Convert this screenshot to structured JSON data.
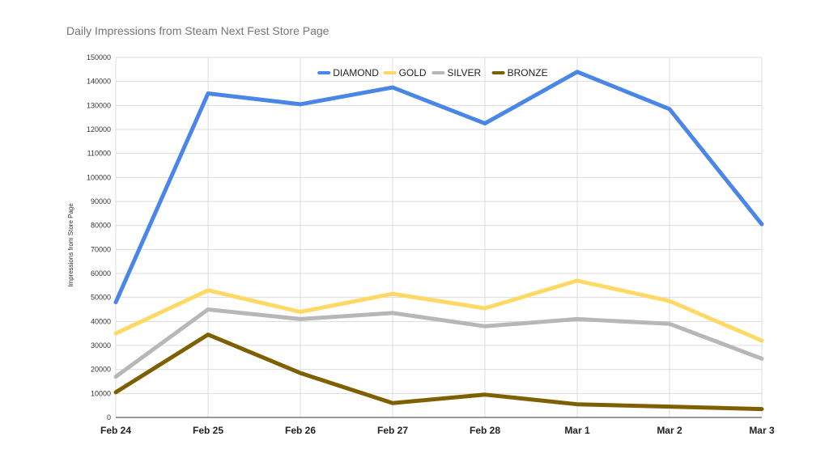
{
  "chart_data": {
    "type": "line",
    "title": "Daily Impressions from Steam Next Fest Store Page",
    "xlabel": "",
    "ylabel": "Impressions from Store Page",
    "categories": [
      "Feb 24",
      "Feb 25",
      "Feb 26",
      "Feb 27",
      "Feb 28",
      "Mar 1",
      "Mar 2",
      "Mar 3"
    ],
    "ylim": [
      0,
      150000
    ],
    "yticks": [
      0,
      10000,
      20000,
      30000,
      40000,
      50000,
      60000,
      70000,
      80000,
      90000,
      100000,
      110000,
      120000,
      130000,
      140000,
      150000
    ],
    "grid": true,
    "legend_position": "top-center",
    "series": [
      {
        "name": "DIAMOND",
        "color": "#4a86e8",
        "values": [
          48000,
          135000,
          130500,
          137500,
          122500,
          144000,
          128500,
          80500
        ]
      },
      {
        "name": "GOLD",
        "color": "#ffd966",
        "values": [
          35000,
          53000,
          44000,
          51500,
          45500,
          57000,
          48500,
          32000
        ]
      },
      {
        "name": "SILVER",
        "color": "#b7b7b7",
        "values": [
          17000,
          45000,
          41000,
          43500,
          38000,
          41000,
          39000,
          24500
        ]
      },
      {
        "name": "BRONZE",
        "color": "#7f6000",
        "values": [
          10500,
          34500,
          18500,
          6000,
          9500,
          5500,
          4500,
          3500
        ]
      }
    ]
  }
}
